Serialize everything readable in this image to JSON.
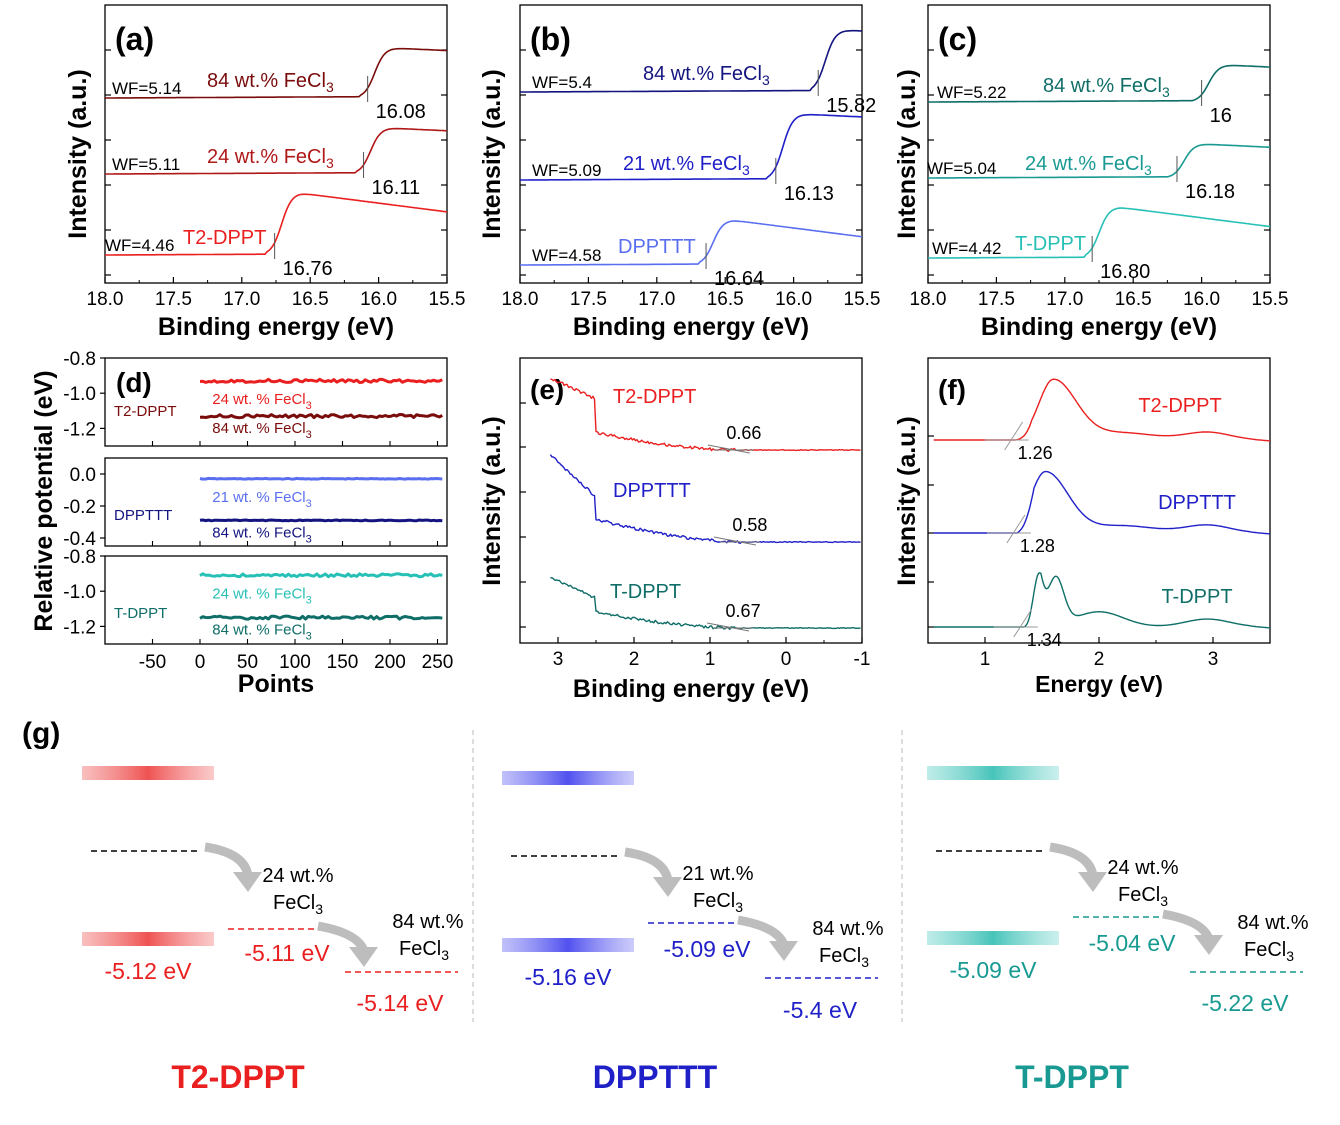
{
  "colors": {
    "t2_dark": "#7a0c0c",
    "t2_mid": "#b01818",
    "t2_light": "#ea1f1f",
    "dpp_dark": "#141480",
    "dpp_mid": "#2020c8",
    "dpp_light": "#5a6ff0",
    "t_dark": "#0f6e68",
    "t_mid": "#189a92",
    "t_light": "#27c0b6",
    "axis": "#000000",
    "tick_gray": "#555555",
    "divider": "#bbbbbb"
  },
  "chart_data": [
    {
      "id": "a",
      "panel_label": "(a)",
      "type": "line",
      "xlabel": "Binding energy (eV)",
      "ylabel": "Intensity (a.u.)",
      "xlim": [
        18.0,
        15.5
      ],
      "xticks": [
        "18.0",
        "17.5",
        "17.0",
        "16.5",
        "16.0",
        "15.5"
      ],
      "series": [
        {
          "name": "84 wt.% FeCl3",
          "label_main": "84 wt.% FeCl",
          "label_sub": "3",
          "wf": "WF=5.14",
          "cutoff": 16.08,
          "cutoff_label": "16.08",
          "color_key": "t2_dark"
        },
        {
          "name": "24 wt.% FeCl3",
          "label_main": "24 wt.% FeCl",
          "label_sub": "3",
          "wf": "WF=5.11",
          "cutoff": 16.11,
          "cutoff_label": "16.11",
          "color_key": "t2_mid"
        },
        {
          "name": "T2-DPPT",
          "label_main": "T2-DPPT",
          "label_sub": "",
          "wf": "WF=4.46",
          "cutoff": 16.76,
          "cutoff_label": "16.76",
          "color_key": "t2_light"
        }
      ]
    },
    {
      "id": "b",
      "panel_label": "(b)",
      "type": "line",
      "xlabel": "Binding energy (eV)",
      "ylabel": "Intensity (a.u.)",
      "xlim": [
        18.0,
        15.5
      ],
      "xticks": [
        "18.0",
        "17.5",
        "17.0",
        "16.5",
        "16.0",
        "15.5"
      ],
      "series": [
        {
          "name": "84 wt.% FeCl3",
          "label_main": "84 wt.% FeCl",
          "label_sub": "3",
          "wf": "WF=5.4",
          "cutoff": 15.82,
          "cutoff_label": "15.82",
          "color_key": "dpp_dark"
        },
        {
          "name": "21 wt.% FeCl3",
          "label_main": "21 wt.% FeCl",
          "label_sub": "3",
          "wf": "WF=5.09",
          "cutoff": 16.13,
          "cutoff_label": "16.13",
          "color_key": "dpp_mid"
        },
        {
          "name": "DPPTTT",
          "label_main": "DPPTTT",
          "label_sub": "",
          "wf": "WF=4.58",
          "cutoff": 16.64,
          "cutoff_label": "16.64",
          "color_key": "dpp_light"
        }
      ]
    },
    {
      "id": "c",
      "panel_label": "(c)",
      "type": "line",
      "xlabel": "Binding energy (eV)",
      "ylabel": "Intensity (a.u.)",
      "xlim": [
        18.0,
        15.5
      ],
      "xticks": [
        "18.0",
        "17.5",
        "17.0",
        "16.5",
        "16.0",
        "15.5"
      ],
      "series": [
        {
          "name": "84 wt.% FeCl3",
          "label_main": "84 wt.% FeCl",
          "label_sub": "3",
          "wf": "WF=5.22",
          "cutoff": 16.0,
          "cutoff_label": "16",
          "color_key": "t_dark"
        },
        {
          "name": "24 wt.% FeCl3",
          "label_main": "24 wt.% FeCl",
          "label_sub": "3",
          "wf": "WF=5.04",
          "cutoff": 16.18,
          "cutoff_label": "16.18",
          "color_key": "t_mid"
        },
        {
          "name": "T-DPPT",
          "label_main": "T-DPPT",
          "label_sub": "",
          "wf": "WF=4.42",
          "cutoff": 16.8,
          "cutoff_label": "16.80",
          "color_key": "t_light"
        }
      ]
    },
    {
      "id": "d",
      "panel_label": "(d)",
      "type": "line",
      "xlabel": "Points",
      "ylabel": "Relative potential (eV)",
      "xlim": [
        -100,
        260
      ],
      "xticks": [
        "-50",
        "0",
        "50",
        "100",
        "150",
        "200",
        "250"
      ],
      "subplots": [
        {
          "material": "T2-DPPT",
          "ylim": [
            -1.3,
            -0.8
          ],
          "yticks": [
            "-0.8",
            "-1.0",
            "-1.2"
          ],
          "series": [
            {
              "name": "24 wt. % FeCl3",
              "label_main": "24 wt. % FeCl",
              "label_sub": "3",
              "value": -0.93,
              "color_key": "t2_light"
            },
            {
              "name": "84 wt. % FeCl3",
              "label_main": "84 wt. % FeCl",
              "label_sub": "3",
              "value": -1.13,
              "color_key": "t2_dark"
            }
          ]
        },
        {
          "material": "DPPTTT",
          "ylim": [
            -0.45,
            0.1
          ],
          "yticks": [
            "0.0",
            "-0.2",
            "-0.4"
          ],
          "series": [
            {
              "name": "21 wt. % FeCl3",
              "label_main": "21 wt. % FeCl",
              "label_sub": "3",
              "value": -0.03,
              "color_key": "dpp_light"
            },
            {
              "name": "84 wt. % FeCl3",
              "label_main": "84 wt. % FeCl",
              "label_sub": "3",
              "value": -0.29,
              "color_key": "dpp_dark"
            }
          ]
        },
        {
          "material": "T-DPPT",
          "ylim": [
            -1.3,
            -0.8
          ],
          "yticks": [
            "-0.8",
            "-1.0",
            "-1.2"
          ],
          "series": [
            {
              "name": "24 wt. % FeCl3",
              "label_main": "24 wt. % FeCl",
              "label_sub": "3",
              "value": -0.91,
              "color_key": "t_light"
            },
            {
              "name": "84 wt. % FeCl3",
              "label_main": "84 wt. % FeCl",
              "label_sub": "3",
              "value": -1.15,
              "color_key": "t_dark"
            }
          ]
        }
      ]
    },
    {
      "id": "e",
      "panel_label": "(e)",
      "type": "line",
      "xlabel": "Binding energy (eV)",
      "ylabel": "Intensity (a.u.)",
      "xlim": [
        3.5,
        -1.0
      ],
      "xticks": [
        "3",
        "2",
        "1",
        "0",
        "-1"
      ],
      "series": [
        {
          "name": "T2-DPPT",
          "onset": 0.66,
          "onset_label": "0.66",
          "color_key": "t2_light"
        },
        {
          "name": "DPPTTT",
          "onset": 0.58,
          "onset_label": "0.58",
          "color_key": "dpp_mid"
        },
        {
          "name": "T-DPPT",
          "onset": 0.67,
          "onset_label": "0.67",
          "color_key": "t_dark"
        }
      ]
    },
    {
      "id": "f",
      "panel_label": "(f)",
      "type": "line",
      "xlabel": "Energy (eV)",
      "ylabel": "Intensity (a.u.)",
      "xlim": [
        0.5,
        3.5
      ],
      "xticks": [
        "1",
        "2",
        "3"
      ],
      "series": [
        {
          "name": "T2-DPPT",
          "gap": 1.26,
          "gap_label": "1.26",
          "color_key": "t2_light"
        },
        {
          "name": "DPPTTT",
          "gap": 1.28,
          "gap_label": "1.28",
          "color_key": "dpp_mid"
        },
        {
          "name": "T-DPPT",
          "gap": 1.34,
          "gap_label": "1.34",
          "color_key": "t_dark"
        }
      ]
    }
  ],
  "diagram": {
    "panel_label": "(g)",
    "sections": [
      {
        "material": "T2-DPPT",
        "color_key": "t2_light",
        "pristine_label": "-5.12 eV",
        "step1_line1": "24 wt.%",
        "step1_main": "FeCl",
        "step1_sub": "3",
        "step1_value": "-5.11 eV",
        "step2_line1": "84 wt.%",
        "step2_main": "FeCl",
        "step2_sub": "3",
        "step2_value": "-5.14 eV"
      },
      {
        "material": "DPPTTT",
        "color_key": "dpp_mid",
        "pristine_label": "-5.16 eV",
        "step1_line1": "21 wt.%",
        "step1_main": "FeCl",
        "step1_sub": "3",
        "step1_value": "-5.09 eV",
        "step2_line1": "84 wt.%",
        "step2_main": "FeCl",
        "step2_sub": "3",
        "step2_value": "-5.4 eV"
      },
      {
        "material": "T-DPPT",
        "color_key": "t_mid",
        "pristine_label": "-5.09 eV",
        "step1_line1": "24 wt.%",
        "step1_main": "FeCl",
        "step1_sub": "3",
        "step1_value": "-5.04 eV",
        "step2_line1": "84 wt.%",
        "step2_main": "FeCl",
        "step2_sub": "3",
        "step2_value": "-5.22 eV"
      }
    ]
  }
}
